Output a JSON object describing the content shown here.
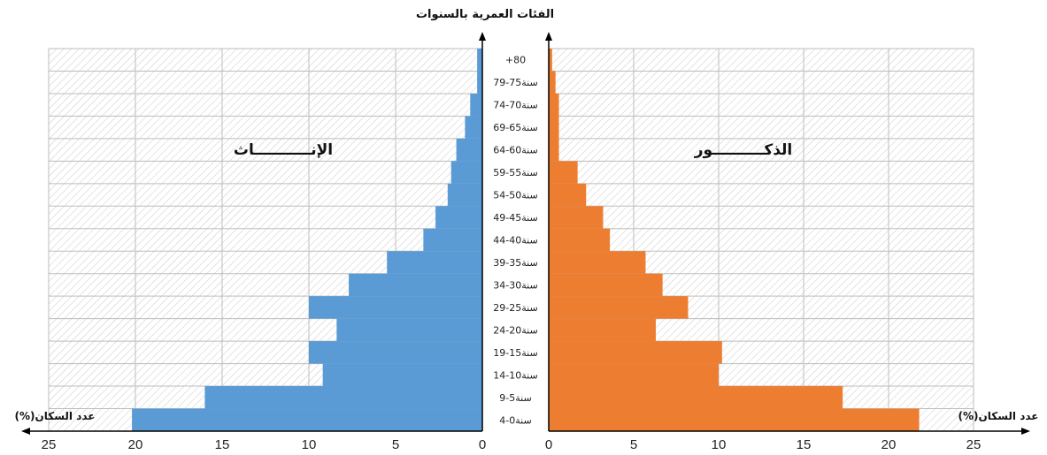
{
  "chart_data": {
    "type": "bar",
    "orientation": "horizontal",
    "title": "الفئات العمرية بالسنوات",
    "xlabel": "(%)عدد السكان",
    "categories": [
      "+80",
      "سنة75-79",
      "سنة70-74",
      "سنة65-69",
      "سنة60-64",
      "سنة55-59",
      "سنة50-54",
      "سنة45-49",
      "سنة40-44",
      "سنة35-39",
      "سنة30-34",
      "سنة25-29",
      "سنة20-24",
      "سنة15-19",
      "سنة10-14",
      "سنة5-9",
      "سنة0-4"
    ],
    "xlim": [
      0,
      25
    ],
    "ticks": [
      "0",
      "5",
      "10",
      "15",
      "20",
      "25"
    ],
    "grid": true,
    "series": [
      {
        "name": "الإنـــــــــــاث",
        "color": "#5b9bd5",
        "values": [
          0.3,
          0.3,
          0.7,
          1.0,
          1.5,
          1.8,
          2.0,
          2.7,
          3.4,
          5.5,
          7.7,
          10.0,
          8.4,
          10.0,
          9.2,
          16.0,
          20.2
        ]
      },
      {
        "name": "الذكــــــــــور",
        "color": "#ed7d31",
        "values": [
          0.2,
          0.4,
          0.6,
          0.6,
          0.6,
          1.7,
          2.2,
          3.2,
          3.6,
          5.7,
          6.7,
          8.2,
          6.3,
          10.2,
          10.0,
          17.3,
          21.8
        ]
      }
    ]
  }
}
